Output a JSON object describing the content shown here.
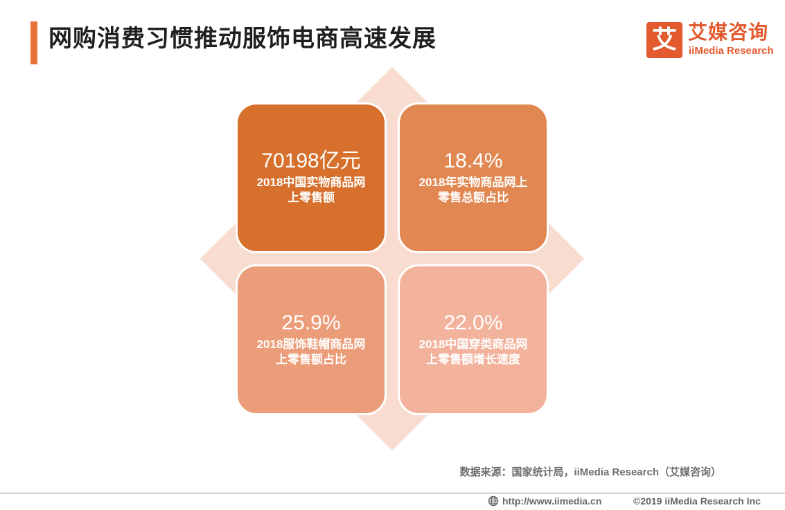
{
  "header": {
    "title": "网购消费习惯推动服饰电商高速发展",
    "accent_color": "#e8703a"
  },
  "brand": {
    "mark": "艾",
    "name": "艾媒咨询",
    "sub": "iiMedia Research",
    "color": "#e35a2e"
  },
  "tiles": [
    {
      "value": "70198亿元",
      "caption_line1": "2018中国实物商品网",
      "caption_line2": "上零售额",
      "color": "#d6702c"
    },
    {
      "value": "18.4%",
      "caption_line1": "2018年实物商品网上",
      "caption_line2": "零售总额占比",
      "color": "#e18852"
    },
    {
      "value": "25.9%",
      "caption_line1": "2018服饰鞋帽商品网",
      "caption_line2": "上零售额占比",
      "color": "#eb9c78"
    },
    {
      "value": "22.0%",
      "caption_line1": "2018中国穿类商品网",
      "caption_line2": "上零售额增长速度",
      "color": "#f2b29c"
    }
  ],
  "background_diamond_color": "#f9dcd0",
  "source": "数据来源：国家统计局，iiMedia Research（艾媒咨询）",
  "footer": {
    "icon": "globe-icon",
    "url": "http://www.iimedia.cn",
    "copyright": "©2019  iiMedia Research  Inc"
  }
}
